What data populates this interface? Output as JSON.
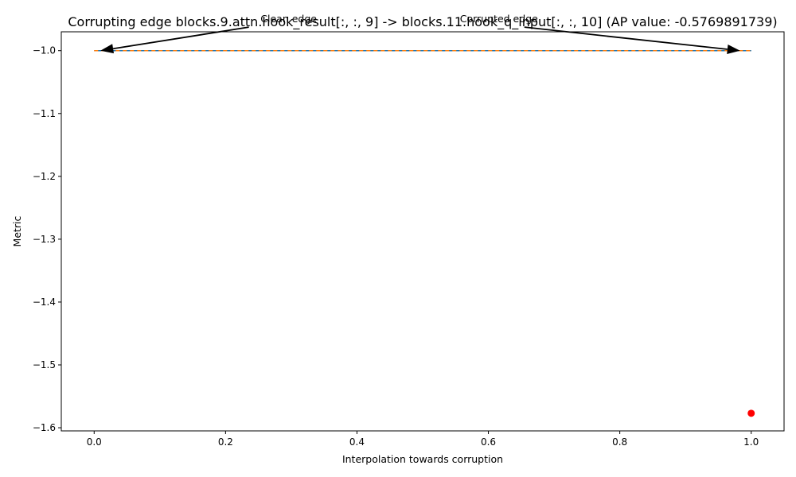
{
  "chart_data": {
    "type": "line",
    "title": "Corrupting edge blocks.9.attn.hook_result[:, :, 9] -> blocks.11.hook_q_input[:, :, 10] (AP value: -0.5769891739)",
    "xlabel": "Interpolation towards corruption",
    "ylabel": "Metric",
    "xlim": [
      -0.05,
      1.05
    ],
    "ylim": [
      -1.605,
      -0.97
    ],
    "xticks": [
      0.0,
      0.2,
      0.4,
      0.6,
      0.8,
      1.0
    ],
    "xtick_labels": [
      "0.0",
      "0.2",
      "0.4",
      "0.6",
      "0.8",
      "1.0"
    ],
    "yticks": [
      -1.0,
      -1.1,
      -1.2,
      -1.3,
      -1.4,
      -1.5,
      -1.6
    ],
    "ytick_labels": [
      "−1.0",
      "−1.1",
      "−1.2",
      "−1.3",
      "−1.4",
      "−1.5",
      "−1.6"
    ],
    "grid": false,
    "series": [
      {
        "style": "solid",
        "color": "#1f77b4",
        "x": [
          0.0,
          0.1,
          0.2,
          0.3,
          0.4,
          0.5,
          0.6,
          0.7,
          0.8,
          0.9,
          1.0
        ],
        "y": [
          -1.0,
          -1.0,
          -1.0,
          -1.0,
          -1.0,
          -1.0,
          -1.0,
          -1.0,
          -1.0,
          -1.0,
          -1.0
        ]
      },
      {
        "style": "dashed",
        "color": "#ff7f0e",
        "x": [
          0.0,
          1.0
        ],
        "y": [
          -1.0,
          -1.0
        ]
      }
    ],
    "points": [
      {
        "x": 1.0,
        "y": -1.577,
        "color": "#ff0000"
      }
    ],
    "annotations": [
      {
        "text": "Clean edge",
        "text_x": 0.25,
        "text_y": -0.955,
        "arrow_to_x": 0.0,
        "arrow_to_y": -1.0
      },
      {
        "text": "Corrupted edge",
        "text_x": 0.57,
        "text_y": -0.955,
        "arrow_to_x": 1.0,
        "arrow_to_y": -1.0
      }
    ]
  }
}
